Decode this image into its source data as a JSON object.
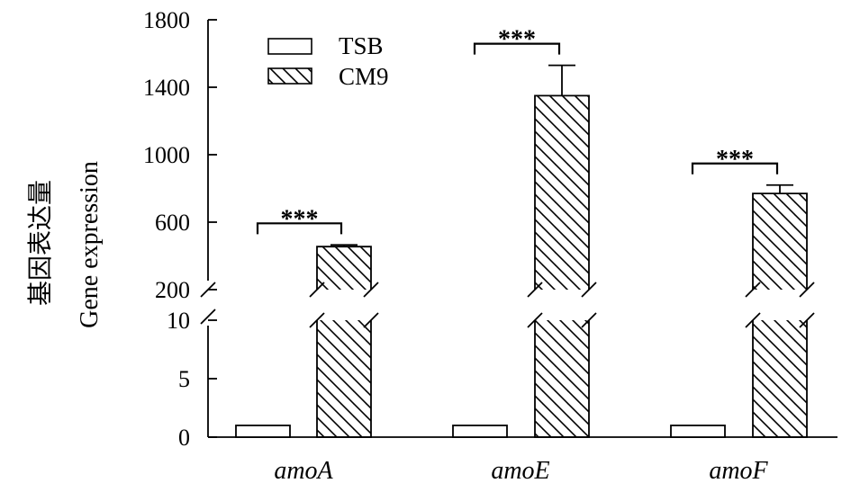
{
  "chart_data": {
    "type": "bar",
    "categories": [
      "amoA",
      "amoE",
      "amoF"
    ],
    "series": [
      {
        "name": "TSB",
        "values": [
          1,
          1,
          1
        ],
        "error": [
          0,
          0,
          0
        ],
        "pattern": "open"
      },
      {
        "name": "CM9",
        "values": [
          455,
          1350,
          770
        ],
        "error": [
          10,
          180,
          50
        ],
        "pattern": "hatched"
      }
    ],
    "ylabel_cn": "基因表达量",
    "ylabel": "Gene expression",
    "axis_break": true,
    "lower_segment": {
      "ylim": [
        0,
        10
      ],
      "ticks": [
        "0",
        "5",
        "10"
      ]
    },
    "upper_segment": {
      "ylim": [
        200,
        1800
      ],
      "ticks": [
        "200",
        "600",
        "1000",
        "1400",
        "1800"
      ]
    },
    "significance": [
      "***",
      "***",
      "***"
    ],
    "legend_position": "top-left",
    "grid": false
  },
  "colors": {
    "ink": "#000000",
    "background": "#ffffff"
  }
}
